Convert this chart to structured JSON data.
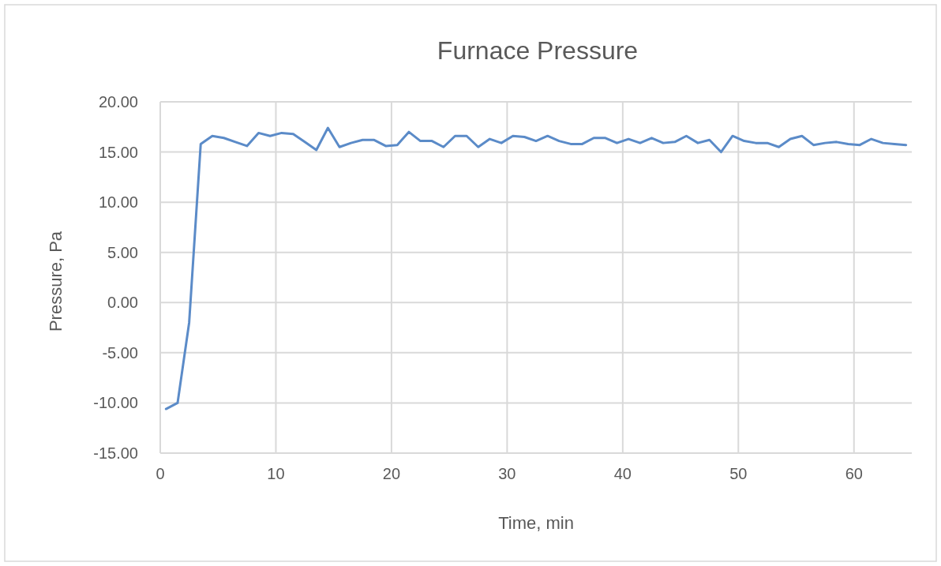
{
  "chart_data": {
    "type": "line",
    "title": "Furnace Pressure",
    "xlabel": "Time, min",
    "ylabel": "Pressure, Pa",
    "x": [
      0.5,
      1.5,
      2.5,
      3.5,
      4.5,
      5.5,
      6.5,
      7.5,
      8.5,
      9.5,
      10.5,
      11.5,
      12.5,
      13.5,
      14.5,
      15.5,
      16.5,
      17.5,
      18.5,
      19.5,
      20.5,
      21.5,
      22.5,
      23.5,
      24.5,
      25.5,
      26.5,
      27.5,
      28.5,
      29.5,
      30.5,
      31.5,
      32.5,
      33.5,
      34.5,
      35.5,
      36.5,
      37.5,
      38.5,
      39.5,
      40.5,
      41.5,
      42.5,
      43.5,
      44.5,
      45.5,
      46.5,
      47.5,
      48.5,
      49.5,
      50.5,
      51.5,
      52.5,
      53.5,
      54.5,
      55.5,
      56.5,
      57.5,
      58.5,
      59.5,
      60.5,
      61.5,
      62.5,
      63.5,
      64.5
    ],
    "series": [
      {
        "color": "#5b8bc8",
        "values": [
          -10.6,
          -10.0,
          -2.0,
          15.8,
          16.6,
          16.4,
          16.0,
          15.6,
          16.9,
          16.6,
          16.9,
          16.8,
          16.0,
          15.2,
          17.4,
          15.5,
          15.9,
          16.2,
          16.2,
          15.6,
          15.7,
          17.0,
          16.1,
          16.1,
          15.5,
          16.6,
          16.6,
          15.5,
          16.3,
          15.9,
          16.6,
          16.5,
          16.1,
          16.6,
          16.1,
          15.8,
          15.8,
          16.4,
          16.4,
          15.9,
          16.3,
          15.9,
          16.4,
          15.9,
          16.0,
          16.6,
          15.9,
          16.2,
          15.0,
          16.6,
          16.1,
          15.9,
          15.9,
          15.5,
          16.3,
          16.6,
          15.7,
          15.9,
          16.0,
          15.8,
          15.7,
          16.3,
          15.9,
          15.8,
          15.7
        ]
      }
    ],
    "xlim": [
      0,
      65
    ],
    "xticks": [
      0,
      10,
      20,
      30,
      40,
      50,
      60
    ],
    "ylim": [
      -15,
      20
    ],
    "yticks": [
      {
        "value": -15,
        "label": "-15.00"
      },
      {
        "value": -10,
        "label": "-10.00"
      },
      {
        "value": -5,
        "label": "-5.00"
      },
      {
        "value": 0,
        "label": "0.00"
      },
      {
        "value": 5,
        "label": "5.00"
      },
      {
        "value": 10,
        "label": "10.00"
      },
      {
        "value": 15,
        "label": "15.00"
      },
      {
        "value": 20,
        "label": "20.00"
      }
    ],
    "grid": true,
    "marker": "none",
    "line_style": "solid"
  }
}
